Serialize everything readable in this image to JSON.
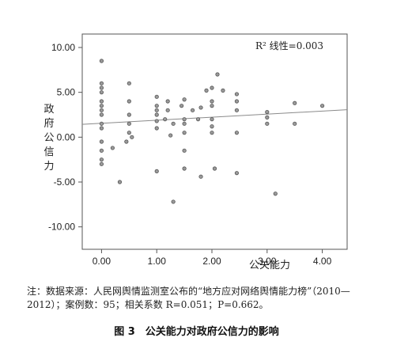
{
  "chart_data": {
    "type": "scatter",
    "title": "",
    "xlabel": "公关能力",
    "ylabel": "政府公信力",
    "xlim": [
      -0.35,
      4.45
    ],
    "ylim": [
      -12.5,
      11.5
    ],
    "x_ticks": [
      0,
      1,
      2,
      3,
      4
    ],
    "x_tick_labels": [
      "0.00",
      "1.00",
      "2.00",
      "3.00",
      "4.00"
    ],
    "y_ticks": [
      10,
      5,
      0,
      -5,
      -10
    ],
    "y_tick_labels": [
      "10.00",
      "5.00",
      "0.00",
      "-5.00",
      "-10.00"
    ],
    "grid": false,
    "annotation": "R² 线性=0.003",
    "fit_line": {
      "intercept": 1.55,
      "slope": 0.34,
      "x_range": [
        -0.35,
        4.45
      ]
    },
    "points": [
      {
        "x": 0.0,
        "y": 8.5
      },
      {
        "x": 0.0,
        "y": 6.0
      },
      {
        "x": 0.0,
        "y": 5.5
      },
      {
        "x": 0.0,
        "y": 5.0
      },
      {
        "x": 0.0,
        "y": 4.0
      },
      {
        "x": 0.0,
        "y": 3.5
      },
      {
        "x": 0.0,
        "y": 3.0
      },
      {
        "x": 0.0,
        "y": 2.5
      },
      {
        "x": 0.0,
        "y": 1.5
      },
      {
        "x": 0.0,
        "y": 1.0
      },
      {
        "x": 0.0,
        "y": -0.5
      },
      {
        "x": 0.0,
        "y": -1.5
      },
      {
        "x": 0.0,
        "y": -2.5
      },
      {
        "x": 0.0,
        "y": -3.0
      },
      {
        "x": 0.2,
        "y": -1.2
      },
      {
        "x": 0.33,
        "y": -5.0
      },
      {
        "x": 0.45,
        "y": -0.5
      },
      {
        "x": 0.5,
        "y": 6.0
      },
      {
        "x": 0.5,
        "y": 4.0
      },
      {
        "x": 0.5,
        "y": 2.5
      },
      {
        "x": 0.5,
        "y": 1.5
      },
      {
        "x": 0.5,
        "y": 0.5
      },
      {
        "x": 0.55,
        "y": 0.0
      },
      {
        "x": 1.0,
        "y": 4.5
      },
      {
        "x": 1.0,
        "y": 3.5
      },
      {
        "x": 1.0,
        "y": 3.0
      },
      {
        "x": 1.0,
        "y": 2.5
      },
      {
        "x": 1.0,
        "y": 1.8
      },
      {
        "x": 1.0,
        "y": 1.0
      },
      {
        "x": 1.0,
        "y": -3.8
      },
      {
        "x": 1.15,
        "y": 2.0
      },
      {
        "x": 1.2,
        "y": 4.0
      },
      {
        "x": 1.2,
        "y": 3.0
      },
      {
        "x": 1.25,
        "y": 0.2
      },
      {
        "x": 1.3,
        "y": 1.5
      },
      {
        "x": 1.3,
        "y": -7.2
      },
      {
        "x": 1.45,
        "y": 3.5
      },
      {
        "x": 1.5,
        "y": 4.2
      },
      {
        "x": 1.5,
        "y": 2.0
      },
      {
        "x": 1.5,
        "y": 1.5
      },
      {
        "x": 1.5,
        "y": 0.5
      },
      {
        "x": 1.5,
        "y": -1.5
      },
      {
        "x": 1.5,
        "y": -3.5
      },
      {
        "x": 1.65,
        "y": 3.0
      },
      {
        "x": 1.75,
        "y": 2.0
      },
      {
        "x": 1.8,
        "y": 3.3
      },
      {
        "x": 1.8,
        "y": -4.4
      },
      {
        "x": 1.9,
        "y": 5.2
      },
      {
        "x": 2.0,
        "y": 5.5
      },
      {
        "x": 2.0,
        "y": 4.0
      },
      {
        "x": 2.0,
        "y": 3.5
      },
      {
        "x": 2.0,
        "y": 2.0
      },
      {
        "x": 2.0,
        "y": 1.2
      },
      {
        "x": 2.0,
        "y": 0.5
      },
      {
        "x": 2.05,
        "y": -3.5
      },
      {
        "x": 2.1,
        "y": 7.0
      },
      {
        "x": 2.2,
        "y": 5.2
      },
      {
        "x": 2.45,
        "y": 4.8
      },
      {
        "x": 2.45,
        "y": 4.0
      },
      {
        "x": 2.45,
        "y": 3.0
      },
      {
        "x": 2.45,
        "y": 0.5
      },
      {
        "x": 2.45,
        "y": -4.0
      },
      {
        "x": 3.0,
        "y": 2.8
      },
      {
        "x": 3.0,
        "y": 2.2
      },
      {
        "x": 3.0,
        "y": 1.5
      },
      {
        "x": 3.15,
        "y": -6.3
      },
      {
        "x": 3.5,
        "y": 3.8
      },
      {
        "x": 3.5,
        "y": 1.5
      },
      {
        "x": 4.0,
        "y": 3.5
      }
    ]
  },
  "note": "注：数据来源：人民网舆情监测室公布的“地方应对网络舆情能力榜”（2010—2012）；案例数：95；相关系数 R=0.051；P=0.662。",
  "caption": "图 3　公关能力对政府公信力的影响"
}
